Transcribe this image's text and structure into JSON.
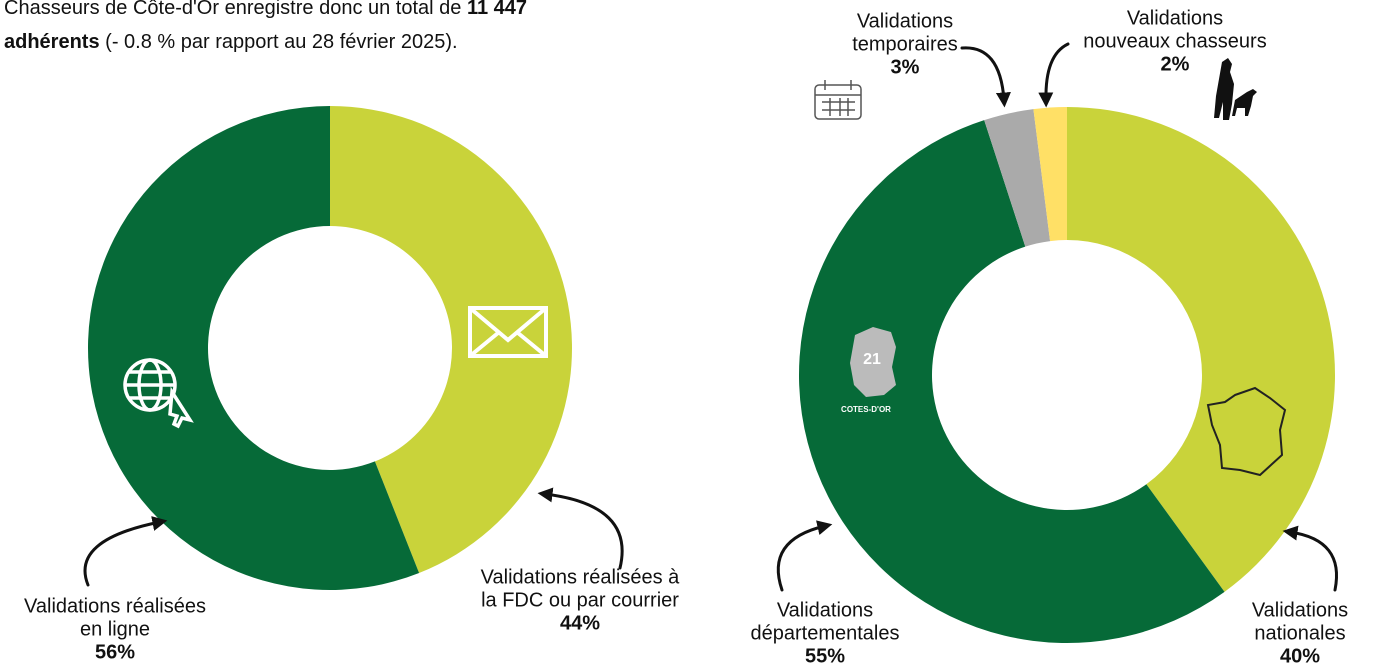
{
  "intro": {
    "line1": "Chasseurs de Côte-d'Or enregistre donc un total de",
    "line1_bold": "11 447",
    "line2_bold": "adhérents",
    "line2": "(- 0.8 % par rapport au 28 février 2025)."
  },
  "chart_data": [
    {
      "type": "donut",
      "categories": [
        [
          "Validations réalisées à",
          "la FDC ou par courrier"
        ],
        [
          "Validations réalisées",
          "en ligne"
        ]
      ],
      "values": [
        44,
        56
      ],
      "value_labels": [
        "44%",
        "56%"
      ],
      "colors": [
        "#c9d33a",
        "#066a38"
      ]
    },
    {
      "type": "donut",
      "categories": [
        [
          "Validations",
          "nationales"
        ],
        [
          "Validations",
          "départementales"
        ],
        [
          "Validations",
          "temporaires"
        ],
        [
          "Validations",
          "nouveaux chasseurs"
        ]
      ],
      "values": [
        40,
        55,
        3,
        2
      ],
      "value_labels": [
        "40%",
        "55%",
        "3%",
        "2%"
      ],
      "colors": [
        "#c9d33a",
        "#066a38",
        "#aaaaaa",
        "#ffe066"
      ],
      "icon_label": "COTES-D'OR",
      "icon_number": "21"
    }
  ]
}
